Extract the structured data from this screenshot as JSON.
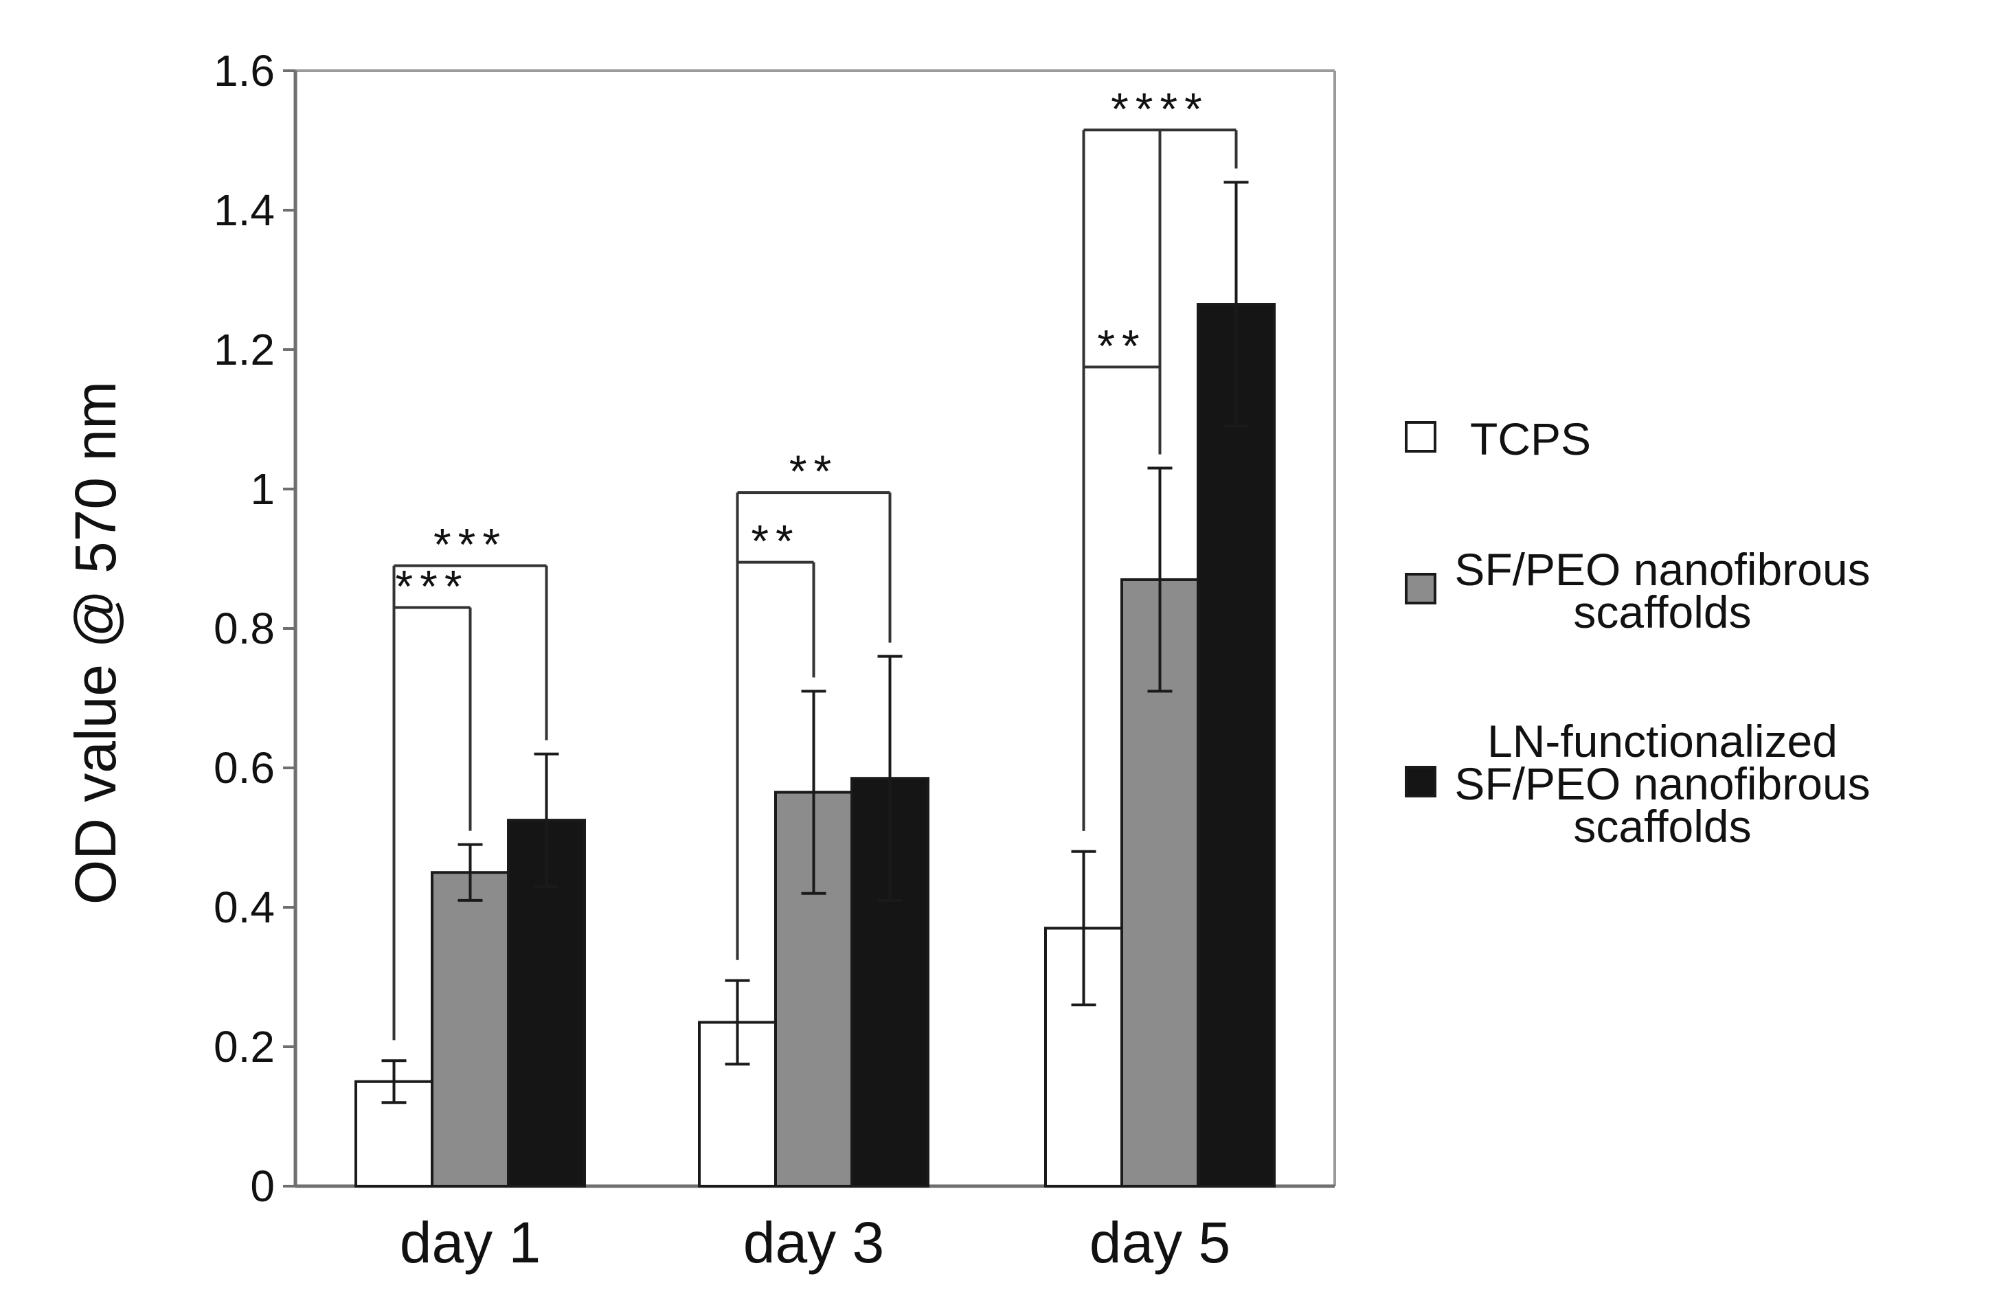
{
  "chart_data": {
    "type": "bar",
    "title": "",
    "xlabel": "",
    "ylabel": "OD value @ 570 nm",
    "ylim": [
      0,
      1.6
    ],
    "yticks": [
      0,
      0.2,
      0.4,
      0.6,
      0.8,
      1,
      1.2,
      1.4,
      1.6
    ],
    "ytick_labels": [
      "0",
      "0.2",
      "0.4",
      "0.6",
      "0.8",
      "1",
      "1.2",
      "1.4",
      "1.6"
    ],
    "categories": [
      "day 1",
      "day 3",
      "day 5"
    ],
    "series": [
      {
        "name": "TCPS",
        "color": "#ffffff",
        "values": [
          0.15,
          0.235,
          0.37
        ],
        "errors": [
          0.03,
          0.06,
          0.11
        ]
      },
      {
        "name": "SF/PEO nanofibrous scaffolds",
        "color": "#8c8c8c",
        "values": [
          0.45,
          0.565,
          0.87
        ],
        "errors": [
          0.04,
          0.145,
          0.16
        ]
      },
      {
        "name": "LN-functionalized SF/PEO nanofibrous scaffolds",
        "color": "#151515",
        "values": [
          0.525,
          0.585,
          1.265
        ],
        "errors": [
          0.095,
          0.175,
          0.175
        ]
      }
    ],
    "legend": {
      "position": "right",
      "entries": [
        {
          "lines": [
            "TCPS"
          ]
        },
        {
          "lines": [
            "SF/PEO nanofibrous",
            "scaffolds"
          ]
        },
        {
          "lines": [
            "LN-functionalized",
            "SF/PEO nanofibrous",
            "scaffolds"
          ]
        }
      ]
    },
    "significance": [
      {
        "category": 0,
        "from": 0,
        "to": 1,
        "level": 0.83,
        "label": "***"
      },
      {
        "category": 0,
        "from": 0,
        "to": 2,
        "level": 0.89,
        "label": "***"
      },
      {
        "category": 1,
        "from": 0,
        "to": 1,
        "level": 0.895,
        "label": "**"
      },
      {
        "category": 1,
        "from": 0,
        "to": 2,
        "level": 0.995,
        "label": "**"
      },
      {
        "category": 2,
        "from": 0,
        "to": 1,
        "level": 1.175,
        "label": "**"
      },
      {
        "category": 2,
        "from": 0,
        "to": 2,
        "level": 1.515,
        "label": "****",
        "middle": 1
      }
    ]
  }
}
